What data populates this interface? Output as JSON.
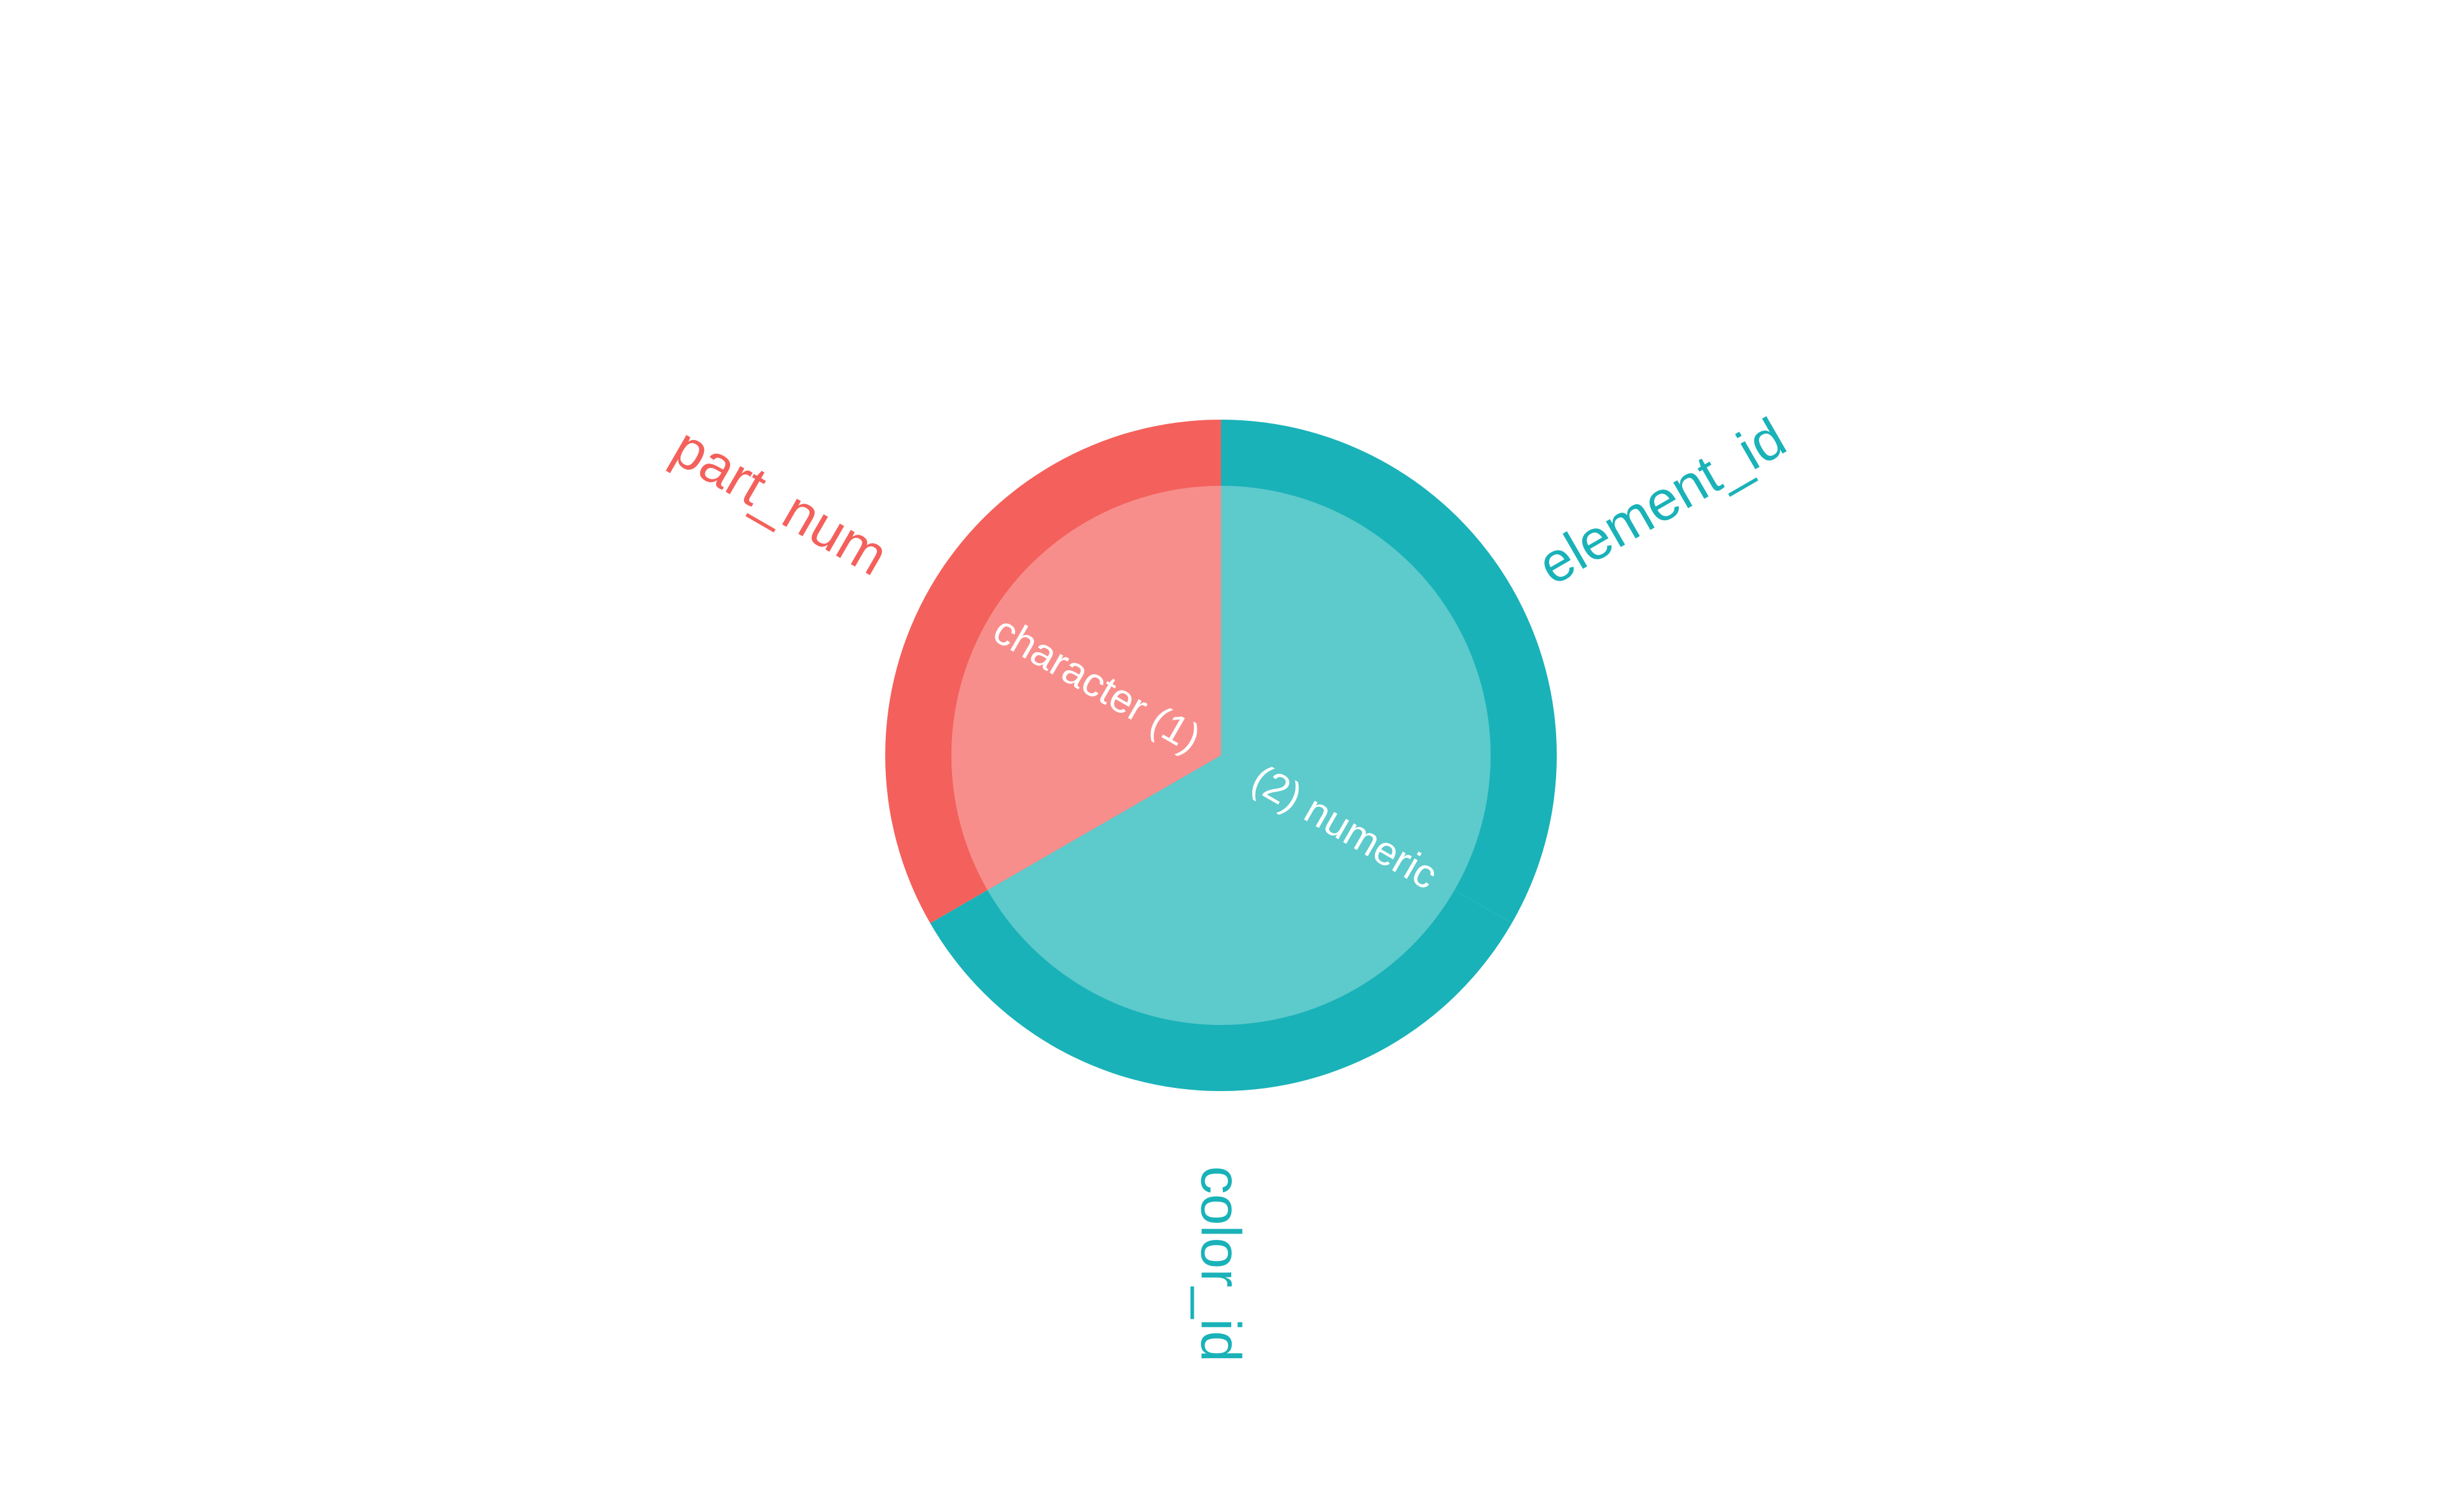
{
  "chart_data": {
    "type": "pie",
    "title": "",
    "inner_ring": {
      "slices": [
        {
          "label": "character",
          "count": 1,
          "value": 1,
          "color": "#F78E8B"
        },
        {
          "label": "numeric",
          "count": 2,
          "value": 2,
          "color": "#5DCACC"
        }
      ]
    },
    "outer_ring": {
      "slices": [
        {
          "label": "part_num",
          "group": "character",
          "value": 1,
          "color": "#F4605B"
        },
        {
          "label": "color_id",
          "group": "numeric",
          "value": 1,
          "color": "#19B2B8"
        },
        {
          "label": "element_id",
          "group": "numeric",
          "value": 1,
          "color": "#19B2B8"
        }
      ]
    },
    "inner_label_format": "{label} ({count})",
    "inner_label_color": "#ffffff"
  }
}
